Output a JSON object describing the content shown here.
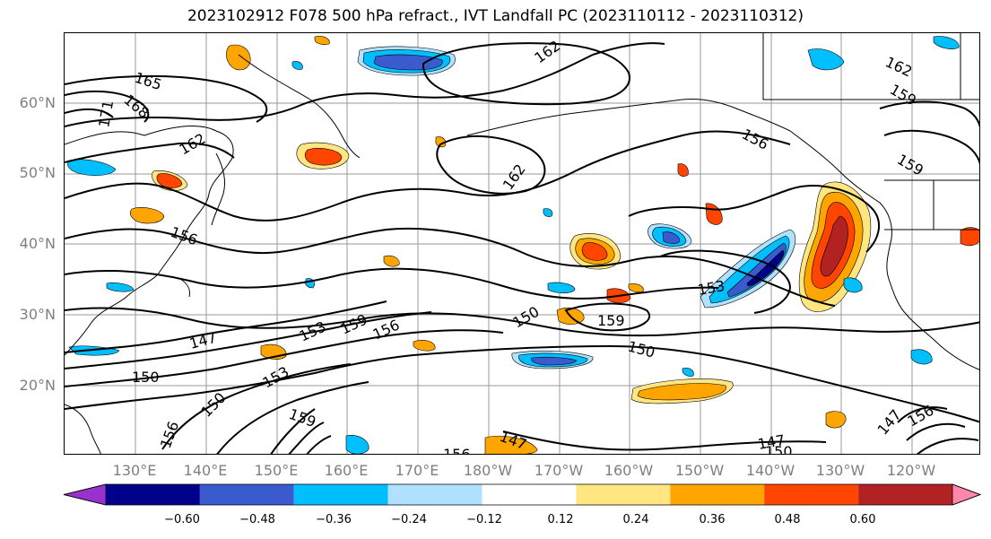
{
  "title": "2023102912 F078 500 hPa refract., IVT Landfall PC (2023110112 - 2023110312)",
  "lat_labels": [
    "60°N",
    "50°N",
    "40°N",
    "30°N",
    "20°N"
  ],
  "lon_labels": [
    "130°E",
    "140°E",
    "150°E",
    "160°E",
    "170°E",
    "180°W",
    "170°W",
    "160°W",
    "150°W",
    "140°W",
    "130°W",
    "120°W"
  ],
  "colorbar": {
    "ticks": [
      "−0.60",
      "−0.48",
      "−0.36",
      "−0.24",
      "−0.12",
      "0.12",
      "0.24",
      "0.36",
      "0.48",
      "0.60"
    ],
    "colors": [
      "#9932cc",
      "#00008b",
      "#3a5bcd",
      "#00bfff",
      "#b0e2ff",
      "#ffffff",
      "#ffe680",
      "#ffa500",
      "#ff4500",
      "#b22222",
      "#ff88aa"
    ]
  },
  "contour_labels": [
    "165",
    "168",
    "171",
    "162",
    "162",
    "162",
    "162",
    "159",
    "156",
    "159",
    "156",
    "153",
    "159",
    "150",
    "147",
    "153",
    "159",
    "156",
    "150",
    "150",
    "153",
    "150",
    "156",
    "159",
    "147",
    "147",
    "150",
    "156",
    "147",
    "156"
  ]
}
